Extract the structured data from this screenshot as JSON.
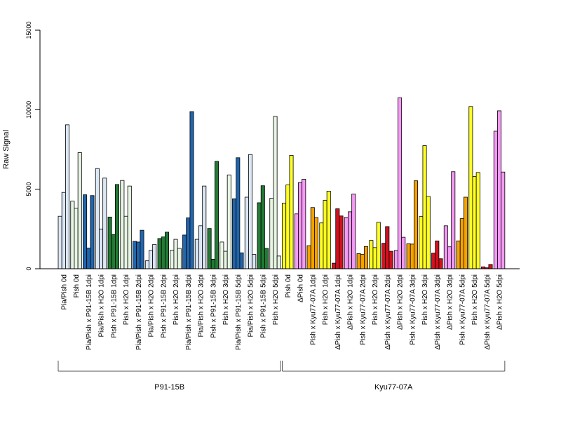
{
  "chart_data": {
    "type": "bar",
    "ylabel": "Raw Signal",
    "xlabel": "",
    "ylim": [
      0,
      15000
    ],
    "yticks": [
      0,
      5000,
      10000,
      15000
    ],
    "grid": false,
    "legend": "none",
    "categories": [
      {
        "label": "Pia/Pish 0d",
        "values": [
          3300,
          4800,
          9050
        ],
        "colors": [
          "#dbe7f5",
          "#dbe7f5",
          "#dbe7f5"
        ]
      },
      {
        "label": "Pish 0d",
        "values": [
          4250,
          3800,
          7300
        ],
        "colors": [
          "#e8f5e4",
          "#e8f5e4",
          "#e8f5e4"
        ]
      },
      {
        "label": "Pia/Pish x P91-15B 1dpi",
        "values": [
          4650,
          1300,
          4600
        ],
        "colors": [
          "#2165ac",
          "#2165ac",
          "#2165ac"
        ]
      },
      {
        "label": "Pia/Pish x H2O 1dpi",
        "values": [
          6300,
          2500,
          5700
        ],
        "colors": [
          "#dbe7f5",
          "#dbe7f5",
          "#dbe7f5"
        ]
      },
      {
        "label": "Pish x P91-15B 1dpi",
        "values": [
          3250,
          2150,
          5300
        ],
        "colors": [
          "#237a35",
          "#237a35",
          "#237a35"
        ]
      },
      {
        "label": "Pish x H2O 1dpi",
        "values": [
          5550,
          3300,
          5200
        ],
        "colors": [
          "#e8f5e4",
          "#e8f5e4",
          "#e8f5e4"
        ]
      },
      {
        "label": "Pia/Pish x P91-15B 2dpi",
        "values": [
          1720,
          1680,
          2420
        ],
        "colors": [
          "#2165ac",
          "#2165ac",
          "#2165ac"
        ]
      },
      {
        "label": "Pia/Pish x H2O 2dpi",
        "values": [
          500,
          1150,
          1530
        ],
        "colors": [
          "#dbe7f5",
          "#dbe7f5",
          "#dbe7f5"
        ]
      },
      {
        "label": "Pish x P91-15B 2dpi",
        "values": [
          1900,
          2000,
          2300
        ],
        "colors": [
          "#237a35",
          "#237a35",
          "#237a35"
        ]
      },
      {
        "label": "Pish x H2O 2dpi",
        "values": [
          1170,
          1850,
          1280
        ],
        "colors": [
          "#e8f5e4",
          "#e8f5e4",
          "#e8f5e4"
        ]
      },
      {
        "label": "Pia/Pish x P91-15B 3dpi",
        "values": [
          2120,
          3200,
          9880
        ],
        "colors": [
          "#2165ac",
          "#2165ac",
          "#2165ac"
        ]
      },
      {
        "label": "Pia/Pish x H2O 3dpi",
        "values": [
          1850,
          2700,
          5200
        ],
        "colors": [
          "#dbe7f5",
          "#dbe7f5",
          "#dbe7f5"
        ]
      },
      {
        "label": "Pish x P91-15B 3dpi",
        "values": [
          2530,
          600,
          6750
        ],
        "colors": [
          "#237a35",
          "#237a35",
          "#237a35"
        ]
      },
      {
        "label": "Pish x H2O 3dpi",
        "values": [
          1680,
          1100,
          5900
        ],
        "colors": [
          "#e8f5e4",
          "#e8f5e4",
          "#e8f5e4"
        ]
      },
      {
        "label": "Pia/Pish x P91-15B 5dpi",
        "values": [
          4400,
          6980,
          1000
        ],
        "colors": [
          "#2165ac",
          "#2165ac",
          "#2165ac"
        ]
      },
      {
        "label": "Pia/Pish x H2O 5dpi",
        "values": [
          4500,
          7180,
          900
        ],
        "colors": [
          "#dbe7f5",
          "#dbe7f5",
          "#dbe7f5"
        ]
      },
      {
        "label": "Pish x P91-15B 5dpi",
        "values": [
          4150,
          5220,
          1280
        ],
        "colors": [
          "#237a35",
          "#237a35",
          "#237a35"
        ]
      },
      {
        "label": "Pish x H2O 5dpi",
        "values": [
          4430,
          9580,
          800
        ],
        "colors": [
          "#e8f5e4",
          "#e8f5e4",
          "#e8f5e4"
        ]
      },
      {
        "label": "Pish 0d",
        "values": [
          4130,
          5270,
          7130
        ],
        "colors": [
          "#ffff22",
          "#ffff22",
          "#ffff22"
        ]
      },
      {
        "label": "ΔPish 0d",
        "values": [
          3450,
          5420,
          5630
        ],
        "colors": [
          "#f59af5",
          "#f59af5",
          "#f59af5"
        ]
      },
      {
        "label": "Pish x Kyu77-07A 1dpi",
        "values": [
          1450,
          3850,
          3220
        ],
        "colors": [
          "#f5a200",
          "#f5a200",
          "#f5a200"
        ]
      },
      {
        "label": "Pish x H2O 1dpi",
        "values": [
          2880,
          4300,
          4880
        ],
        "colors": [
          "#ffff22",
          "#ffff22",
          "#ffff22"
        ]
      },
      {
        "label": "ΔPish x Kyu77-07A 1dpi",
        "values": [
          350,
          3770,
          3320
        ],
        "colors": [
          "#d4111e",
          "#d4111e",
          "#d4111e"
        ]
      },
      {
        "label": "ΔPish x H2O 1dpi",
        "values": [
          3230,
          3580,
          4700
        ],
        "colors": [
          "#f59af5",
          "#f59af5",
          "#f59af5"
        ]
      },
      {
        "label": "Pish x Kyu77-07A 2dpi",
        "values": [
          950,
          900,
          1400
        ],
        "colors": [
          "#f5a200",
          "#f5a200",
          "#f5a200"
        ]
      },
      {
        "label": "Pish x H2O 2dpi",
        "values": [
          1780,
          1330,
          2920
        ],
        "colors": [
          "#ffff22",
          "#ffff22",
          "#ffff22"
        ]
      },
      {
        "label": "ΔPish x Kyu77-07A 2dpi",
        "values": [
          1600,
          2650,
          1100
        ],
        "colors": [
          "#d4111e",
          "#d4111e",
          "#d4111e"
        ]
      },
      {
        "label": "ΔPish x H2O 2dpi",
        "values": [
          1150,
          10750,
          1980
        ],
        "colors": [
          "#f59af5",
          "#f59af5",
          "#f59af5"
        ]
      },
      {
        "label": "Pish x Kyu77-07A 3dpi",
        "values": [
          1570,
          1550,
          5530
        ],
        "colors": [
          "#f5a200",
          "#f5a200",
          "#f5a200"
        ]
      },
      {
        "label": "Pish x H2O 3dpi",
        "values": [
          3280,
          7740,
          4550
        ],
        "colors": [
          "#ffff22",
          "#ffff22",
          "#ffff22"
        ]
      },
      {
        "label": "ΔPish x Kyu77-07A 3dpi",
        "values": [
          980,
          1750,
          630
        ],
        "colors": [
          "#d4111e",
          "#d4111e",
          "#d4111e"
        ]
      },
      {
        "label": "ΔPish x H2O 3dpi",
        "values": [
          2700,
          1380,
          6100
        ],
        "colors": [
          "#f59af5",
          "#f59af5",
          "#f59af5"
        ]
      },
      {
        "label": "Pish x Kyu77-07A 5dpi",
        "values": [
          1750,
          3150,
          4500
        ],
        "colors": [
          "#f5a200",
          "#f5a200",
          "#f5a200"
        ]
      },
      {
        "label": "Pish x H2O 5dpi",
        "values": [
          10200,
          5800,
          6050
        ],
        "colors": [
          "#ffff22",
          "#ffff22",
          "#ffff22"
        ]
      },
      {
        "label": "ΔPish x Kyu77-07A 5dpi",
        "values": [
          120,
          60,
          270
        ],
        "colors": [
          "#d4111e",
          "#d4111e",
          "#d4111e"
        ]
      },
      {
        "label": "ΔPish x H2O 5dpi",
        "values": [
          8650,
          9930,
          6080
        ],
        "colors": [
          "#f59af5",
          "#f59af5",
          "#f59af5"
        ]
      }
    ],
    "groups": [
      {
        "label": "P91-15B",
        "from": 0,
        "to": 17
      },
      {
        "label": "Kyu77-07A",
        "from": 18,
        "to": 35
      }
    ]
  }
}
